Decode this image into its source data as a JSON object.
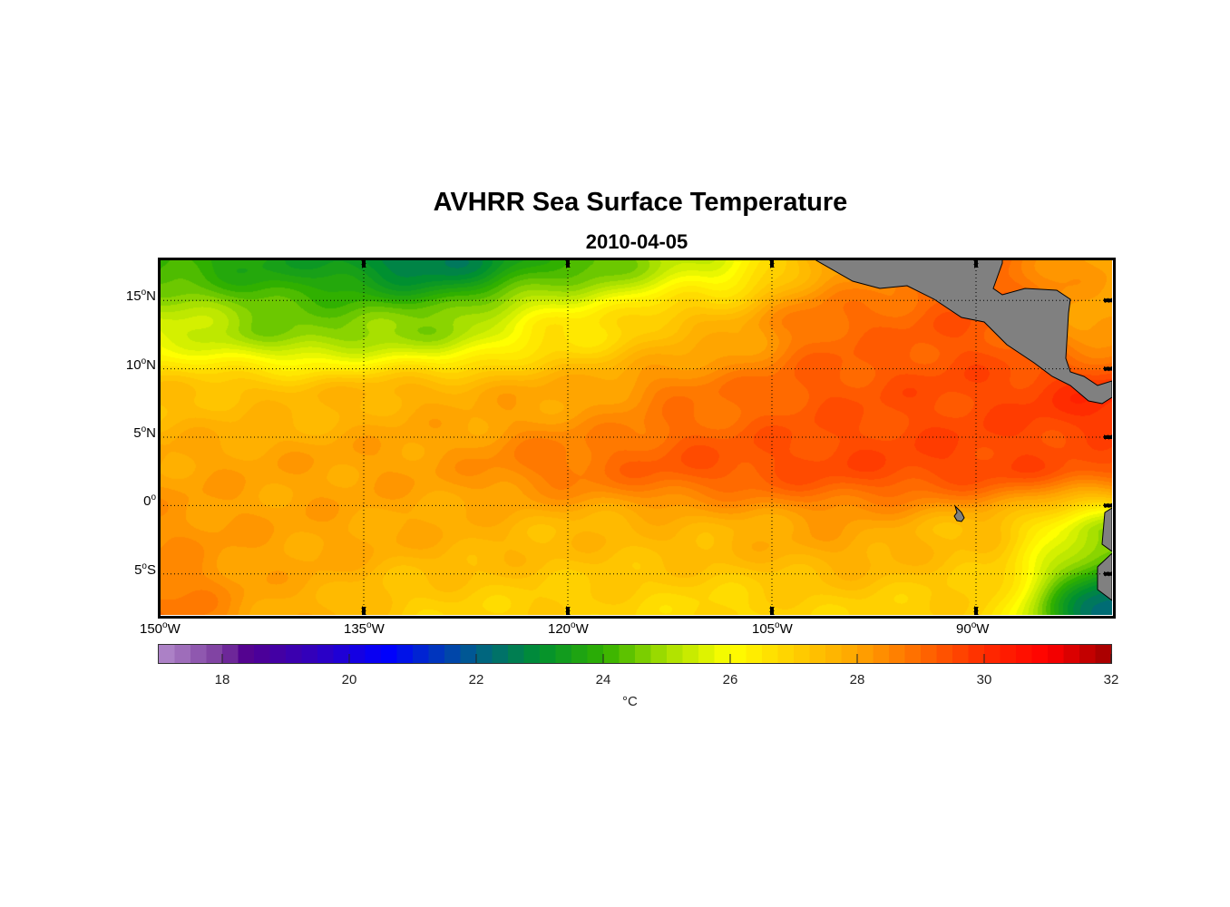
{
  "title": "AVHRR Sea Surface Temperature",
  "subtitle": "2010-04-05",
  "chart_data": {
    "type": "heatmap",
    "title": "AVHRR Sea Surface Temperature",
    "subtitle": "2010-04-05",
    "xlim": [
      -150,
      -80
    ],
    "ylim": [
      -8,
      18
    ],
    "x_ticks": [
      {
        "value": -150,
        "deg": "150",
        "hemi": "W"
      },
      {
        "value": -135,
        "deg": "135",
        "hemi": "W"
      },
      {
        "value": -120,
        "deg": "120",
        "hemi": "W"
      },
      {
        "value": -105,
        "deg": "105",
        "hemi": "W"
      },
      {
        "value": -90,
        "deg": "90",
        "hemi": "W"
      }
    ],
    "y_ticks": [
      {
        "value": 15,
        "deg": "15",
        "hemi": "N"
      },
      {
        "value": 10,
        "deg": "10",
        "hemi": "N"
      },
      {
        "value": 5,
        "deg": "5",
        "hemi": "N"
      },
      {
        "value": 0,
        "deg": "0",
        "hemi": ""
      },
      {
        "value": -5,
        "deg": "5",
        "hemi": "S"
      }
    ],
    "grid": true,
    "grid_lons": [
      -150,
      -140,
      -130,
      -120,
      -110,
      -100,
      -90,
      -80
    ],
    "grid_lats": [
      18,
      13,
      8,
      3,
      -2,
      -8
    ],
    "sst_values": [
      [
        24.0,
        23.5,
        22.6,
        24.0,
        25.5,
        28.0,
        29.0,
        28.0
      ],
      [
        25.5,
        24.6,
        24.8,
        26.5,
        27.6,
        29.0,
        29.3,
        28.0
      ],
      [
        27.4,
        27.5,
        27.8,
        28.0,
        28.8,
        29.3,
        29.5,
        30.0
      ],
      [
        28.0,
        28.0,
        28.1,
        28.8,
        29.3,
        29.5,
        29.6,
        29.3
      ],
      [
        28.3,
        28.0,
        27.8,
        27.5,
        27.6,
        28.0,
        27.4,
        25.0
      ],
      [
        28.8,
        27.8,
        27.0,
        27.0,
        26.8,
        27.0,
        27.0,
        22.0
      ]
    ],
    "colorbar": {
      "range": [
        17,
        32
      ],
      "ticks": [
        "18",
        "20",
        "22",
        "24",
        "26",
        "28",
        "30",
        "32"
      ],
      "tick_values": [
        18,
        20,
        22,
        24,
        26,
        28,
        30,
        32
      ],
      "label": "°C",
      "stops": [
        [
          17,
          "#b48ccc"
        ],
        [
          18,
          "#7a3a9e"
        ],
        [
          18.4,
          "#520090"
        ],
        [
          19.5,
          "#3000c0"
        ],
        [
          20.6,
          "#0000ff"
        ],
        [
          22,
          "#00608a"
        ],
        [
          23,
          "#009030"
        ],
        [
          24,
          "#30b000"
        ],
        [
          25,
          "#a8e000"
        ],
        [
          26,
          "#ffff00"
        ],
        [
          27,
          "#ffd000"
        ],
        [
          28,
          "#ffa500"
        ],
        [
          29,
          "#ff6a00"
        ],
        [
          30,
          "#ff2c00"
        ],
        [
          31,
          "#ff0000"
        ],
        [
          32,
          "#a00000"
        ]
      ]
    },
    "land_color": "#808080"
  }
}
